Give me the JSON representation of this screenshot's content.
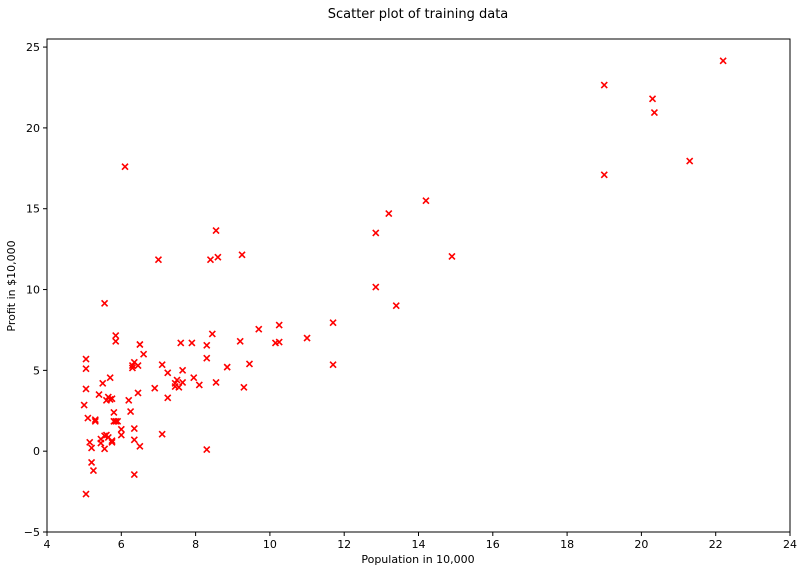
{
  "chart_data": {
    "type": "scatter",
    "title": "Scatter plot of training data",
    "xlabel": "Population in 10,000",
    "ylabel": "Profit in $10,000",
    "xlim": [
      4,
      24
    ],
    "ylim": [
      -5,
      25.5
    ],
    "xticks": [
      4,
      6,
      8,
      10,
      12,
      14,
      16,
      18,
      20,
      22,
      24
    ],
    "yticks": [
      -5,
      0,
      5,
      10,
      15,
      20,
      25
    ],
    "grid": false,
    "marker": "x",
    "color": "#ff0000",
    "points": [
      [
        22.2,
        24.15
      ],
      [
        19.0,
        22.65
      ],
      [
        20.3,
        21.8
      ],
      [
        20.35,
        20.95
      ],
      [
        21.3,
        17.95
      ],
      [
        19.0,
        17.1
      ],
      [
        6.1,
        17.6
      ],
      [
        14.2,
        15.5
      ],
      [
        13.2,
        14.7
      ],
      [
        8.55,
        13.65
      ],
      [
        12.85,
        13.5
      ],
      [
        9.25,
        12.15
      ],
      [
        14.9,
        12.05
      ],
      [
        8.6,
        12.0
      ],
      [
        8.4,
        11.85
      ],
      [
        7.0,
        11.85
      ],
      [
        12.85,
        10.15
      ],
      [
        5.55,
        9.15
      ],
      [
        13.4,
        9.0
      ],
      [
        11.7,
        7.95
      ],
      [
        10.25,
        7.8
      ],
      [
        9.7,
        7.55
      ],
      [
        8.45,
        7.25
      ],
      [
        5.85,
        7.15
      ],
      [
        11.0,
        7.0
      ],
      [
        5.85,
        6.8
      ],
      [
        9.2,
        6.8
      ],
      [
        10.25,
        6.75
      ],
      [
        10.15,
        6.7
      ],
      [
        7.6,
        6.7
      ],
      [
        7.9,
        6.7
      ],
      [
        6.5,
        6.6
      ],
      [
        8.3,
        6.55
      ],
      [
        6.6,
        6.0
      ],
      [
        8.3,
        5.75
      ],
      [
        5.05,
        5.7
      ],
      [
        6.35,
        5.5
      ],
      [
        9.45,
        5.4
      ],
      [
        11.7,
        5.35
      ],
      [
        7.1,
        5.35
      ],
      [
        6.45,
        5.3
      ],
      [
        6.3,
        5.3
      ],
      [
        8.85,
        5.2
      ],
      [
        6.3,
        5.15
      ],
      [
        5.05,
        5.1
      ],
      [
        7.65,
        5.0
      ],
      [
        7.25,
        4.85
      ],
      [
        7.95,
        4.55
      ],
      [
        5.7,
        4.55
      ],
      [
        7.5,
        4.4
      ],
      [
        7.65,
        4.25
      ],
      [
        8.55,
        4.25
      ],
      [
        5.5,
        4.2
      ],
      [
        7.45,
        4.2
      ],
      [
        8.1,
        4.1
      ],
      [
        7.45,
        4.0
      ],
      [
        9.3,
        3.95
      ],
      [
        7.55,
        3.95
      ],
      [
        6.9,
        3.9
      ],
      [
        5.05,
        3.85
      ],
      [
        6.45,
        3.6
      ],
      [
        5.4,
        3.5
      ],
      [
        5.65,
        3.35
      ],
      [
        5.75,
        3.25
      ],
      [
        7.25,
        3.3
      ],
      [
        5.7,
        3.2
      ],
      [
        5.6,
        3.15
      ],
      [
        6.2,
        3.15
      ],
      [
        5.0,
        2.85
      ],
      [
        6.25,
        2.45
      ],
      [
        5.8,
        2.4
      ],
      [
        5.1,
        2.05
      ],
      [
        5.3,
        1.95
      ],
      [
        5.3,
        1.85
      ],
      [
        5.9,
        1.85
      ],
      [
        5.85,
        1.85
      ],
      [
        5.8,
        1.85
      ],
      [
        6.0,
        1.35
      ],
      [
        6.35,
        1.4
      ],
      [
        7.1,
        1.05
      ],
      [
        6.0,
        1.0
      ],
      [
        5.6,
        1.0
      ],
      [
        5.55,
        0.95
      ],
      [
        5.65,
        0.85
      ],
      [
        5.45,
        0.75
      ],
      [
        6.35,
        0.7
      ],
      [
        5.75,
        0.65
      ],
      [
        5.15,
        0.55
      ],
      [
        5.45,
        0.5
      ],
      [
        5.75,
        0.55
      ],
      [
        6.5,
        0.3
      ],
      [
        5.2,
        0.2
      ],
      [
        5.55,
        0.15
      ],
      [
        8.3,
        0.1
      ],
      [
        5.2,
        -0.7
      ],
      [
        5.25,
        -1.2
      ],
      [
        6.35,
        -1.45
      ],
      [
        5.05,
        -2.65
      ]
    ]
  }
}
